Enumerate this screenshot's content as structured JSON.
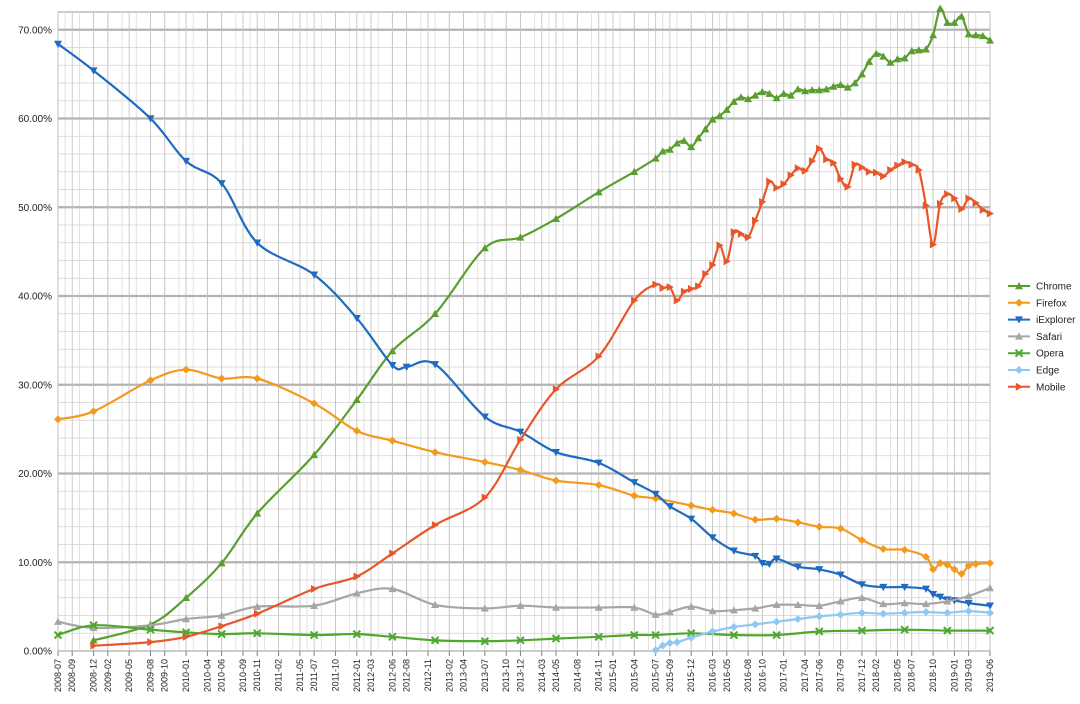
{
  "chart_data": {
    "type": "line",
    "title": "",
    "xlabel": "",
    "ylabel": "",
    "ylim": [
      0,
      72
    ],
    "grid": true,
    "legend_position": "right",
    "yticks": [
      "0.00%",
      "10.00%",
      "20.00%",
      "30.00%",
      "40.00%",
      "50.00%",
      "60.00%",
      "70.00%"
    ],
    "xticks": [
      "2008-07",
      "2008-09",
      "2008-12",
      "2009-02",
      "2009-05",
      "2009-08",
      "2009-10",
      "2010-01",
      "2010-04",
      "2010-06",
      "2010-09",
      "2010-11",
      "2011-02",
      "2011-05",
      "2011-07",
      "2011-10",
      "2012-01",
      "2012-03",
      "2012-06",
      "2012-08",
      "2012-11",
      "2013-02",
      "2013-04",
      "2013-07",
      "2013-10",
      "2013-12",
      "2014-03",
      "2014-05",
      "2014-08",
      "2014-11",
      "2015-01",
      "2015-04",
      "2015-07",
      "2015-09",
      "2015-12",
      "2016-03",
      "2016-05",
      "2016-08",
      "2016-10",
      "2017-01",
      "2017-04",
      "2017-06",
      "2017-09",
      "2017-12",
      "2018-02",
      "2018-05",
      "2018-07",
      "2018-10",
      "2019-01",
      "2019-03",
      "2019-06"
    ],
    "series": [
      {
        "name": "Chrome",
        "color": "#5a9e2f",
        "marker": "triangle-up",
        "points": [
          [
            "2008-12",
            1.2
          ],
          [
            "2009-08",
            3
          ],
          [
            "2010-01",
            6
          ],
          [
            "2010-06",
            9.9
          ],
          [
            "2010-11",
            15.5
          ],
          [
            "2011-07",
            22.1
          ],
          [
            "2012-01",
            28.3
          ],
          [
            "2012-06",
            33.8
          ],
          [
            "2012-12",
            38
          ],
          [
            "2013-07",
            45.4
          ],
          [
            "2013-12",
            46.6
          ],
          [
            "2014-05",
            48.7
          ],
          [
            "2014-11",
            51.7
          ],
          [
            "2015-04",
            54
          ],
          [
            "2015-07",
            55.5
          ],
          [
            "2015-08",
            56.3
          ],
          [
            "2015-09",
            56.5
          ],
          [
            "2015-10",
            57.2
          ],
          [
            "2015-11",
            57.5
          ],
          [
            "2015-12",
            56.8
          ],
          [
            "2016-01",
            57.8
          ],
          [
            "2016-02",
            58.8
          ],
          [
            "2016-03",
            59.9
          ],
          [
            "2016-04",
            60.3
          ],
          [
            "2016-05",
            61
          ],
          [
            "2016-06",
            61.9
          ],
          [
            "2016-07",
            62.4
          ],
          [
            "2016-08",
            62.2
          ],
          [
            "2016-09",
            62.6
          ],
          [
            "2016-10",
            63
          ],
          [
            "2016-11",
            62.8
          ],
          [
            "2016-12",
            62.3
          ],
          [
            "2017-01",
            62.8
          ],
          [
            "2017-02",
            62.6
          ],
          [
            "2017-03",
            63.3
          ],
          [
            "2017-04",
            63.1
          ],
          [
            "2017-05",
            63.2
          ],
          [
            "2017-06",
            63.2
          ],
          [
            "2017-07",
            63.3
          ],
          [
            "2017-08",
            63.6
          ],
          [
            "2017-09",
            63.8
          ],
          [
            "2017-10",
            63.5
          ],
          [
            "2017-11",
            64
          ],
          [
            "2017-12",
            65
          ],
          [
            "2018-01",
            66.4
          ],
          [
            "2018-02",
            67.3
          ],
          [
            "2018-03",
            67
          ],
          [
            "2018-04",
            66.3
          ],
          [
            "2018-05",
            66.7
          ],
          [
            "2018-06",
            66.8
          ],
          [
            "2018-07",
            67.6
          ],
          [
            "2018-08",
            67.7
          ],
          [
            "2018-09",
            67.8
          ],
          [
            "2018-10",
            69.4
          ],
          [
            "2018-11",
            72.4
          ],
          [
            "2018-12",
            70.8
          ],
          [
            "2019-01",
            70.8
          ],
          [
            "2019-02",
            71.5
          ],
          [
            "2019-03",
            69.5
          ],
          [
            "2019-04",
            69.4
          ],
          [
            "2019-05",
            69.3
          ],
          [
            "2019-06",
            68.8
          ]
        ]
      },
      {
        "name": "Firefox",
        "color": "#f39a1e",
        "marker": "diamond",
        "points": [
          [
            "2008-07",
            26.1
          ],
          [
            "2008-12",
            27
          ],
          [
            "2009-08",
            30.5
          ],
          [
            "2010-01",
            31.7
          ],
          [
            "2010-06",
            30.7
          ],
          [
            "2010-11",
            30.7
          ],
          [
            "2011-07",
            27.9
          ],
          [
            "2012-01",
            24.8
          ],
          [
            "2012-06",
            23.7
          ],
          [
            "2012-12",
            22.4
          ],
          [
            "2013-07",
            21.3
          ],
          [
            "2013-12",
            20.4
          ],
          [
            "2014-05",
            19.2
          ],
          [
            "2014-11",
            18.7
          ],
          [
            "2015-04",
            17.5
          ],
          [
            "2015-07",
            17.2
          ],
          [
            "2015-12",
            16.4
          ],
          [
            "2016-03",
            15.9
          ],
          [
            "2016-06",
            15.5
          ],
          [
            "2016-09",
            14.8
          ],
          [
            "2016-12",
            14.9
          ],
          [
            "2017-03",
            14.5
          ],
          [
            "2017-06",
            14
          ],
          [
            "2017-09",
            13.8
          ],
          [
            "2017-12",
            12.5
          ],
          [
            "2018-03",
            11.5
          ],
          [
            "2018-06",
            11.4
          ],
          [
            "2018-09",
            10.6
          ],
          [
            "2018-10",
            9.2
          ],
          [
            "2018-11",
            9.9
          ],
          [
            "2018-12",
            9.7
          ],
          [
            "2019-01",
            9.2
          ],
          [
            "2019-02",
            8.7
          ],
          [
            "2019-03",
            9.6
          ],
          [
            "2019-04",
            9.8
          ],
          [
            "2019-06",
            9.9
          ]
        ]
      },
      {
        "name": "iExplorer",
        "color": "#1f6bc0",
        "marker": "triangle-down",
        "points": [
          [
            "2008-07",
            68.4
          ],
          [
            "2008-12",
            65.4
          ],
          [
            "2009-08",
            60
          ],
          [
            "2010-01",
            55.2
          ],
          [
            "2010-06",
            52.7
          ],
          [
            "2010-11",
            46
          ],
          [
            "2011-07",
            42.4
          ],
          [
            "2012-01",
            37.5
          ],
          [
            "2012-06",
            32.2
          ],
          [
            "2012-08",
            32
          ],
          [
            "2012-12",
            32.3
          ],
          [
            "2013-07",
            26.4
          ],
          [
            "2013-12",
            24.7
          ],
          [
            "2014-05",
            22.4
          ],
          [
            "2014-11",
            21.2
          ],
          [
            "2015-04",
            19
          ],
          [
            "2015-07",
            17.7
          ],
          [
            "2015-09",
            16.3
          ],
          [
            "2015-12",
            14.9
          ],
          [
            "2016-03",
            12.8
          ],
          [
            "2016-06",
            11.3
          ],
          [
            "2016-09",
            10.7
          ],
          [
            "2016-10",
            9.9
          ],
          [
            "2016-11",
            9.8
          ],
          [
            "2016-12",
            10.4
          ],
          [
            "2017-03",
            9.5
          ],
          [
            "2017-06",
            9.2
          ],
          [
            "2017-09",
            8.6
          ],
          [
            "2017-12",
            7.5
          ],
          [
            "2018-03",
            7.2
          ],
          [
            "2018-06",
            7.2
          ],
          [
            "2018-09",
            7
          ],
          [
            "2018-10",
            6.4
          ],
          [
            "2018-11",
            6.1
          ],
          [
            "2018-12",
            5.8
          ],
          [
            "2019-01",
            5.7
          ],
          [
            "2019-03",
            5.4
          ],
          [
            "2019-06",
            5.1
          ]
        ]
      },
      {
        "name": "Safari",
        "color": "#a6a6a6",
        "marker": "triangle-up",
        "points": [
          [
            "2008-07",
            3.3
          ],
          [
            "2008-12",
            2.6
          ],
          [
            "2009-08",
            2.9
          ],
          [
            "2010-01",
            3.6
          ],
          [
            "2010-06",
            4
          ],
          [
            "2010-11",
            5
          ],
          [
            "2011-07",
            5.1
          ],
          [
            "2012-01",
            6.5
          ],
          [
            "2012-06",
            7
          ],
          [
            "2012-12",
            5.2
          ],
          [
            "2013-07",
            4.8
          ],
          [
            "2013-12",
            5.1
          ],
          [
            "2014-05",
            4.9
          ],
          [
            "2014-11",
            4.9
          ],
          [
            "2015-04",
            4.9
          ],
          [
            "2015-07",
            4.1
          ],
          [
            "2015-09",
            4.4
          ],
          [
            "2015-12",
            5
          ],
          [
            "2016-03",
            4.5
          ],
          [
            "2016-06",
            4.6
          ],
          [
            "2016-09",
            4.8
          ],
          [
            "2016-12",
            5.2
          ],
          [
            "2017-03",
            5.2
          ],
          [
            "2017-06",
            5.1
          ],
          [
            "2017-09",
            5.6
          ],
          [
            "2017-12",
            6
          ],
          [
            "2018-03",
            5.3
          ],
          [
            "2018-06",
            5.4
          ],
          [
            "2018-09",
            5.3
          ],
          [
            "2018-12",
            5.6
          ],
          [
            "2019-03",
            6.2
          ],
          [
            "2019-06",
            7.1
          ]
        ]
      },
      {
        "name": "Opera",
        "color": "#4ea72e",
        "marker": "x",
        "points": [
          [
            "2008-07",
            1.8
          ],
          [
            "2008-12",
            2.9
          ],
          [
            "2009-08",
            2.4
          ],
          [
            "2010-01",
            2.1
          ],
          [
            "2010-06",
            1.9
          ],
          [
            "2010-11",
            2
          ],
          [
            "2011-07",
            1.8
          ],
          [
            "2012-01",
            1.9
          ],
          [
            "2012-06",
            1.6
          ],
          [
            "2012-12",
            1.2
          ],
          [
            "2013-07",
            1.1
          ],
          [
            "2013-12",
            1.2
          ],
          [
            "2014-05",
            1.4
          ],
          [
            "2014-11",
            1.6
          ],
          [
            "2015-04",
            1.8
          ],
          [
            "2015-07",
            1.8
          ],
          [
            "2015-12",
            2
          ],
          [
            "2016-06",
            1.8
          ],
          [
            "2016-12",
            1.8
          ],
          [
            "2017-06",
            2.2
          ],
          [
            "2017-12",
            2.3
          ],
          [
            "2018-06",
            2.4
          ],
          [
            "2018-12",
            2.3
          ],
          [
            "2019-06",
            2.3
          ]
        ]
      },
      {
        "name": "Edge",
        "color": "#8ec9f0",
        "marker": "diamond",
        "points": [
          [
            "2015-07",
            0.1
          ],
          [
            "2015-08",
            0.6
          ],
          [
            "2015-09",
            0.9
          ],
          [
            "2015-10",
            1
          ],
          [
            "2015-12",
            1.5
          ],
          [
            "2016-03",
            2.2
          ],
          [
            "2016-06",
            2.7
          ],
          [
            "2016-09",
            3
          ],
          [
            "2016-12",
            3.3
          ],
          [
            "2017-03",
            3.6
          ],
          [
            "2017-06",
            3.9
          ],
          [
            "2017-09",
            4.1
          ],
          [
            "2017-12",
            4.3
          ],
          [
            "2018-03",
            4.2
          ],
          [
            "2018-06",
            4.3
          ],
          [
            "2018-09",
            4.4
          ],
          [
            "2018-12",
            4.3
          ],
          [
            "2019-03",
            4.5
          ],
          [
            "2019-06",
            4.3
          ]
        ]
      },
      {
        "name": "Mobile",
        "color": "#e8562a",
        "marker": "triangle-right",
        "points": [
          [
            "2008-12",
            0.6
          ],
          [
            "2009-08",
            1
          ],
          [
            "2010-01",
            1.6
          ],
          [
            "2010-06",
            2.8
          ],
          [
            "2010-11",
            4.2
          ],
          [
            "2011-07",
            7
          ],
          [
            "2012-01",
            8.4
          ],
          [
            "2012-06",
            11
          ],
          [
            "2012-12",
            14.2
          ],
          [
            "2013-07",
            17.3
          ],
          [
            "2013-12",
            23.8
          ],
          [
            "2014-05",
            29.5
          ],
          [
            "2014-11",
            33.2
          ],
          [
            "2015-04",
            39.5
          ],
          [
            "2015-07",
            41.3
          ],
          [
            "2015-08",
            40.9
          ],
          [
            "2015-09",
            41
          ],
          [
            "2015-10",
            39.5
          ],
          [
            "2015-11",
            40.5
          ],
          [
            "2015-12",
            40.8
          ],
          [
            "2016-01",
            41.1
          ],
          [
            "2016-02",
            42.5
          ],
          [
            "2016-03",
            43.5
          ],
          [
            "2016-04",
            45.7
          ],
          [
            "2016-05",
            43.9
          ],
          [
            "2016-06",
            47.2
          ],
          [
            "2016-07",
            47
          ],
          [
            "2016-08",
            46.6
          ],
          [
            "2016-09",
            48.5
          ],
          [
            "2016-10",
            50.6
          ],
          [
            "2016-11",
            52.9
          ],
          [
            "2016-12",
            52.2
          ],
          [
            "2017-01",
            52.6
          ],
          [
            "2017-02",
            53.6
          ],
          [
            "2017-03",
            54.4
          ],
          [
            "2017-04",
            54.1
          ],
          [
            "2017-05",
            55.2
          ],
          [
            "2017-06",
            56.6
          ],
          [
            "2017-07",
            55.4
          ],
          [
            "2017-08",
            55
          ],
          [
            "2017-09",
            53.2
          ],
          [
            "2017-10",
            52.3
          ],
          [
            "2017-11",
            54.8
          ],
          [
            "2017-12",
            54.5
          ],
          [
            "2018-01",
            54
          ],
          [
            "2018-02",
            53.9
          ],
          [
            "2018-03",
            53.5
          ],
          [
            "2018-04",
            54.2
          ],
          [
            "2018-05",
            54.7
          ],
          [
            "2018-06",
            55.1
          ],
          [
            "2018-07",
            54.8
          ],
          [
            "2018-08",
            54.2
          ],
          [
            "2018-09",
            50.2
          ],
          [
            "2018-10",
            45.8
          ],
          [
            "2018-11",
            50.4
          ],
          [
            "2018-12",
            51.5
          ],
          [
            "2019-01",
            51
          ],
          [
            "2019-02",
            49.8
          ],
          [
            "2019-03",
            51
          ],
          [
            "2019-04",
            50.5
          ],
          [
            "2019-05",
            49.7
          ],
          [
            "2019-06",
            49.3
          ]
        ]
      }
    ]
  }
}
